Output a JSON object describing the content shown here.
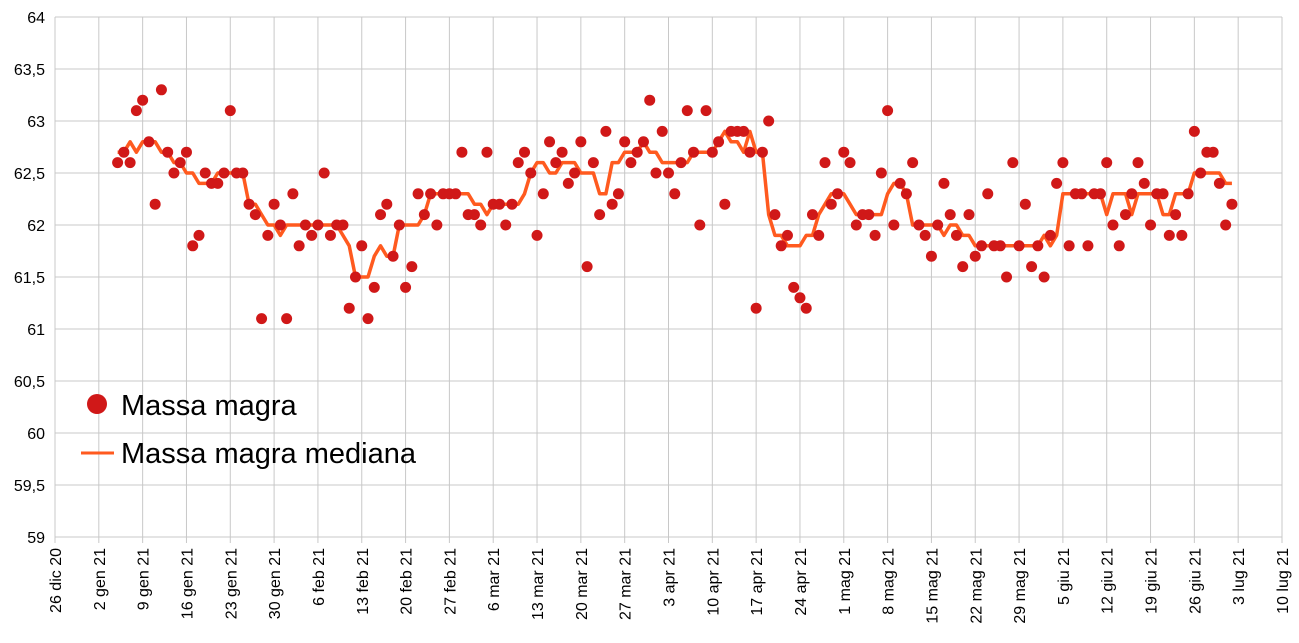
{
  "chart_data": {
    "type": "scatter",
    "title": "",
    "xlabel": "",
    "ylabel": "",
    "ylim": [
      59,
      64
    ],
    "y_ticks": [
      "59",
      "59,5",
      "60",
      "60,5",
      "61",
      "61,5",
      "62",
      "62,5",
      "63",
      "63,5",
      "64"
    ],
    "y_tick_values": [
      59,
      59.5,
      60,
      60.5,
      61,
      61.5,
      62,
      62.5,
      63,
      63.5,
      64
    ],
    "x_range_days": [
      0,
      196
    ],
    "x_origin_label": "26 dic 20",
    "x_ticks": [
      "26 dic 20",
      "2 gen 21",
      "9 gen 21",
      "16 gen 21",
      "23 gen 21",
      "30 gen 21",
      "6 feb 21",
      "13 feb 21",
      "20 feb 21",
      "27 feb 21",
      "6 mar 21",
      "13 mar 21",
      "20 mar 21",
      "27 mar 21",
      "3 apr 21",
      "10 apr 21",
      "17 apr 21",
      "24 apr 21",
      "1 mag 21",
      "8 mag 21",
      "15 mag 21",
      "22 mag 21",
      "29 mag 21",
      "5 giu 21",
      "12 giu 21",
      "19 giu 21",
      "26 giu 21",
      "3 lug 21",
      "10 lug 21"
    ],
    "x_tick_step_days": 7,
    "grid": true,
    "legend_position": "left-lower",
    "series": [
      {
        "name": "Massa magra",
        "kind": "points",
        "color": "#d01818",
        "start_day": 10,
        "values": [
          62.6,
          62.7,
          62.6,
          63.1,
          63.2,
          62.8,
          62.2,
          63.3,
          62.7,
          62.5,
          62.6,
          62.7,
          61.8,
          61.9,
          62.5,
          62.4,
          62.4,
          62.5,
          63.1,
          62.5,
          62.5,
          62.2,
          62.1,
          61.1,
          61.9,
          62.2,
          62.0,
          61.1,
          62.3,
          61.8,
          62.0,
          61.9,
          62.0,
          62.5,
          61.9,
          62.0,
          62.0,
          61.2,
          61.5,
          61.8,
          61.1,
          61.4,
          62.1,
          62.2,
          61.7,
          62.0,
          61.4,
          61.6,
          62.3,
          62.1,
          62.3,
          62.0,
          62.3,
          62.3,
          62.3,
          62.7,
          62.1,
          62.1,
          62.0,
          62.7,
          62.2,
          62.2,
          62.0,
          62.2,
          62.6,
          62.7,
          62.5,
          61.9,
          62.3,
          62.8,
          62.6,
          62.7,
          62.4,
          62.5,
          62.8,
          61.6,
          62.6,
          62.1,
          62.9,
          62.2,
          62.3,
          62.8,
          62.6,
          62.7,
          62.8,
          63.2,
          62.5,
          62.9,
          62.5,
          62.3,
          62.6,
          63.1,
          62.7,
          62.0,
          63.1,
          62.7,
          62.8,
          62.2,
          62.9,
          62.9,
          62.9,
          62.7,
          61.2,
          62.7,
          63.0,
          62.1,
          61.8,
          61.9,
          61.4,
          61.3,
          61.2,
          62.1,
          61.9,
          62.6,
          62.2,
          62.3,
          62.7,
          62.6,
          62.0,
          62.1,
          62.1,
          61.9,
          62.5,
          63.1,
          62.0,
          62.4,
          62.3,
          62.6,
          62.0,
          61.9,
          61.7,
          62.0,
          62.4,
          62.1,
          61.9,
          61.6,
          62.1,
          61.7,
          61.8,
          62.3,
          61.8,
          61.8,
          61.5,
          62.6,
          61.8,
          62.2,
          61.6,
          61.8,
          61.5,
          61.9,
          62.4,
          62.6,
          61.8,
          62.3,
          62.3,
          61.8,
          62.3,
          62.3,
          62.6,
          62.0,
          61.8,
          62.1,
          62.3,
          62.6,
          62.4,
          62.0,
          62.3,
          62.3,
          61.9,
          62.1,
          61.9,
          62.3,
          62.9,
          62.5,
          62.7,
          62.7,
          62.4,
          62.0,
          62.2
        ]
      },
      {
        "name": "Massa magra mediana",
        "kind": "line",
        "color": "#ff5a1f",
        "derived_from": "Massa magra",
        "rolling_median_window": 7
      }
    ]
  }
}
